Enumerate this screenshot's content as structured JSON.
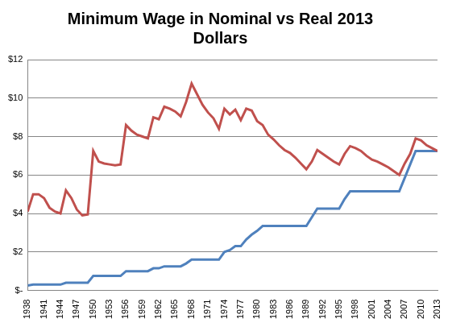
{
  "chart_data": {
    "type": "line",
    "title": "Minimum Wage in Nominal vs Real 2013 Dollars",
    "categories": [
      1938,
      null,
      null,
      1941,
      null,
      null,
      1944,
      null,
      null,
      1947,
      null,
      null,
      1950,
      null,
      null,
      1953,
      null,
      null,
      1956,
      null,
      null,
      1959,
      null,
      null,
      1962,
      null,
      null,
      1965,
      null,
      null,
      1968,
      null,
      null,
      1971,
      null,
      null,
      1974,
      null,
      null,
      1977,
      null,
      null,
      1980,
      null,
      null,
      1983,
      null,
      null,
      1986,
      null,
      null,
      1989,
      null,
      null,
      1992,
      null,
      null,
      1995,
      null,
      null,
      1998,
      null,
      null,
      2001,
      null,
      null,
      2004,
      null,
      null,
      2007,
      null,
      null,
      2010,
      null,
      null,
      2013
    ],
    "series": [
      {
        "color": "#c0504d",
        "values": [
          4.1,
          5.0,
          5.0,
          4.8,
          4.3,
          4.1,
          4.0,
          5.2,
          4.8,
          4.2,
          3.9,
          3.95,
          7.25,
          6.7,
          6.6,
          6.55,
          6.5,
          6.55,
          8.6,
          8.3,
          8.1,
          8.0,
          7.9,
          9.0,
          8.9,
          9.55,
          9.45,
          9.3,
          9.05,
          9.8,
          10.75,
          10.2,
          9.65,
          9.25,
          8.95,
          8.4,
          9.45,
          9.15,
          9.4,
          8.85,
          9.45,
          9.35,
          8.8,
          8.6,
          8.1,
          7.85,
          7.55,
          7.3,
          7.15,
          6.9,
          6.6,
          6.3,
          6.7,
          7.3,
          7.1,
          6.9,
          6.7,
          6.55,
          7.1,
          7.5,
          7.4,
          7.25,
          7.0,
          6.8,
          6.7,
          6.55,
          6.4,
          6.2,
          6.0,
          6.6,
          7.1,
          7.9,
          7.8,
          7.55,
          7.4,
          7.25
        ]
      },
      {
        "color": "#4f81bd",
        "values": [
          0.25,
          0.3,
          0.3,
          0.3,
          0.3,
          0.3,
          0.3,
          0.4,
          0.4,
          0.4,
          0.4,
          0.4,
          0.75,
          0.75,
          0.75,
          0.75,
          0.75,
          0.75,
          1.0,
          1.0,
          1.0,
          1.0,
          1.0,
          1.15,
          1.15,
          1.25,
          1.25,
          1.25,
          1.25,
          1.4,
          1.6,
          1.6,
          1.6,
          1.6,
          1.6,
          1.6,
          2.0,
          2.1,
          2.3,
          2.3,
          2.65,
          2.9,
          3.1,
          3.35,
          3.35,
          3.35,
          3.35,
          3.35,
          3.35,
          3.35,
          3.35,
          3.35,
          3.8,
          4.25,
          4.25,
          4.25,
          4.25,
          4.25,
          4.75,
          5.15,
          5.15,
          5.15,
          5.15,
          5.15,
          5.15,
          5.15,
          5.15,
          5.15,
          5.15,
          5.85,
          6.55,
          7.25,
          7.25,
          7.25,
          7.25,
          7.25
        ]
      }
    ],
    "ylim": [
      0,
      12
    ],
    "yticks": [
      {
        "value": 0,
        "label": "$-"
      },
      {
        "value": 2,
        "label": "$2"
      },
      {
        "value": 4,
        "label": "$4"
      },
      {
        "value": 6,
        "label": "$6"
      },
      {
        "value": 8,
        "label": "$8"
      },
      {
        "value": 10,
        "label": "$10"
      },
      {
        "value": 12,
        "label": "$12"
      }
    ],
    "grid": true
  }
}
